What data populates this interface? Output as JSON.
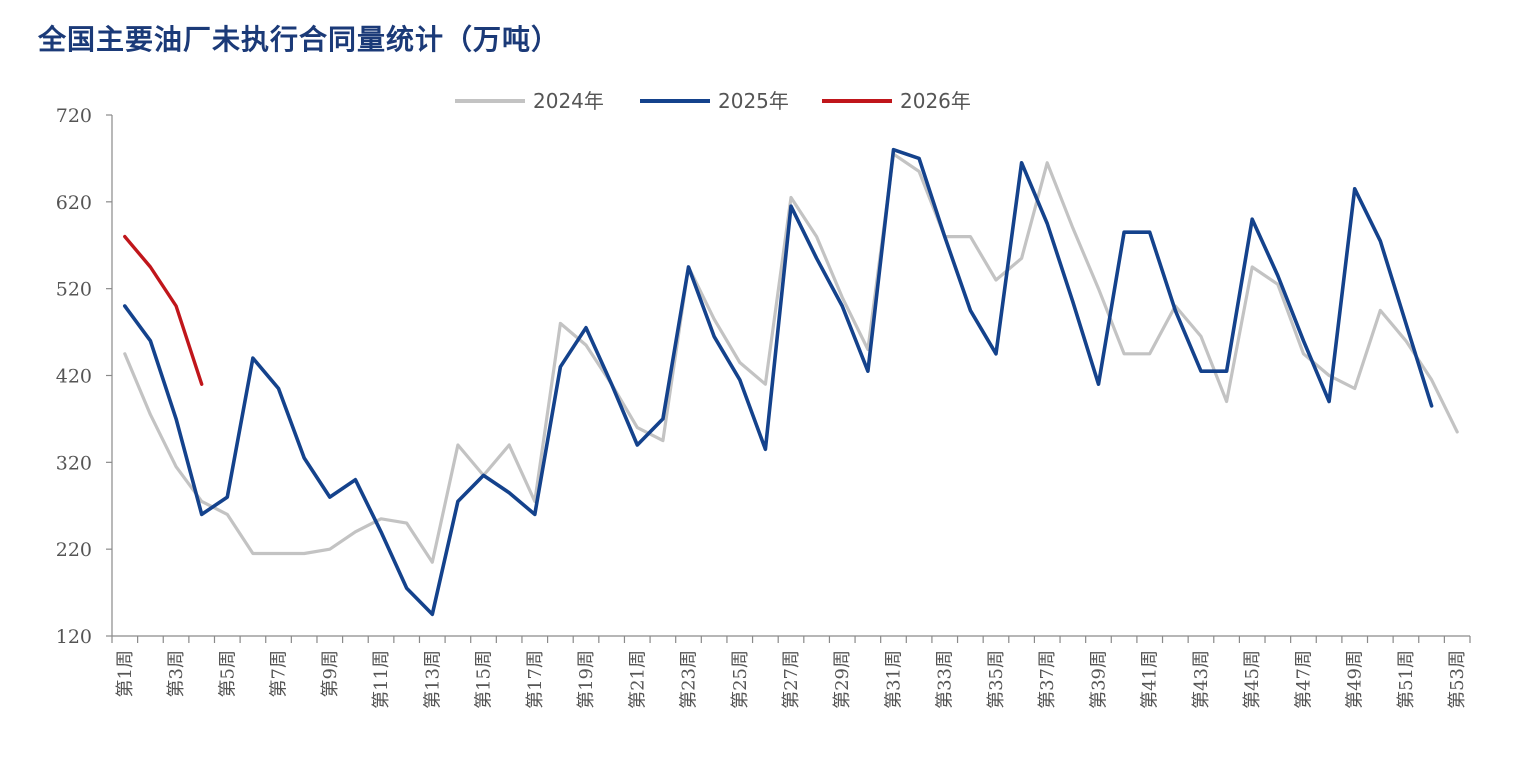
{
  "title": "全国主要油厂未执行合同量统计（万吨）",
  "chart_data": {
    "type": "line",
    "title": "全国主要油厂未执行合同量统计（万吨）",
    "xlabel": "",
    "ylabel": "",
    "ylim": [
      120,
      720
    ],
    "yticks": [
      120,
      220,
      320,
      420,
      520,
      620,
      720
    ],
    "x_count": 53,
    "x_tick_labels": [
      "第1周",
      "第3周",
      "第5周",
      "第7周",
      "第9周",
      "第11周",
      "第13周",
      "第15周",
      "第17周",
      "第19周",
      "第21周",
      "第23周",
      "第25周",
      "第27周",
      "第29周",
      "第31周",
      "第33周",
      "第35周",
      "第37周",
      "第39周",
      "第41周",
      "第43周",
      "第45周",
      "第47周",
      "第49周",
      "第51周",
      "第53周"
    ],
    "legend_position": "top",
    "grid": false,
    "series": [
      {
        "name": "2024年",
        "color": "#c3c3c3",
        "values": [
          445,
          375,
          315,
          275,
          260,
          215,
          215,
          215,
          220,
          240,
          255,
          250,
          205,
          340,
          305,
          340,
          275,
          480,
          455,
          410,
          360,
          345,
          545,
          485,
          435,
          410,
          625,
          580,
          510,
          450,
          675,
          655,
          580,
          580,
          530,
          555,
          665,
          590,
          520,
          445,
          445,
          500,
          465,
          390,
          545,
          525,
          445,
          420,
          405,
          495,
          460,
          415,
          355
        ]
      },
      {
        "name": "2025年",
        "color": "#14428c",
        "values": [
          500,
          460,
          370,
          260,
          280,
          440,
          405,
          325,
          280,
          300,
          240,
          175,
          145,
          275,
          305,
          285,
          260,
          430,
          475,
          410,
          340,
          370,
          545,
          465,
          415,
          335,
          615,
          555,
          500,
          425,
          680,
          670,
          580,
          495,
          445,
          665,
          595,
          505,
          410,
          585,
          585,
          495,
          425,
          425,
          600,
          535,
          460,
          390,
          635,
          575,
          480,
          385
        ]
      },
      {
        "name": "2026年",
        "color": "#c0161b",
        "values": [
          580,
          545,
          500,
          410
        ]
      }
    ]
  }
}
